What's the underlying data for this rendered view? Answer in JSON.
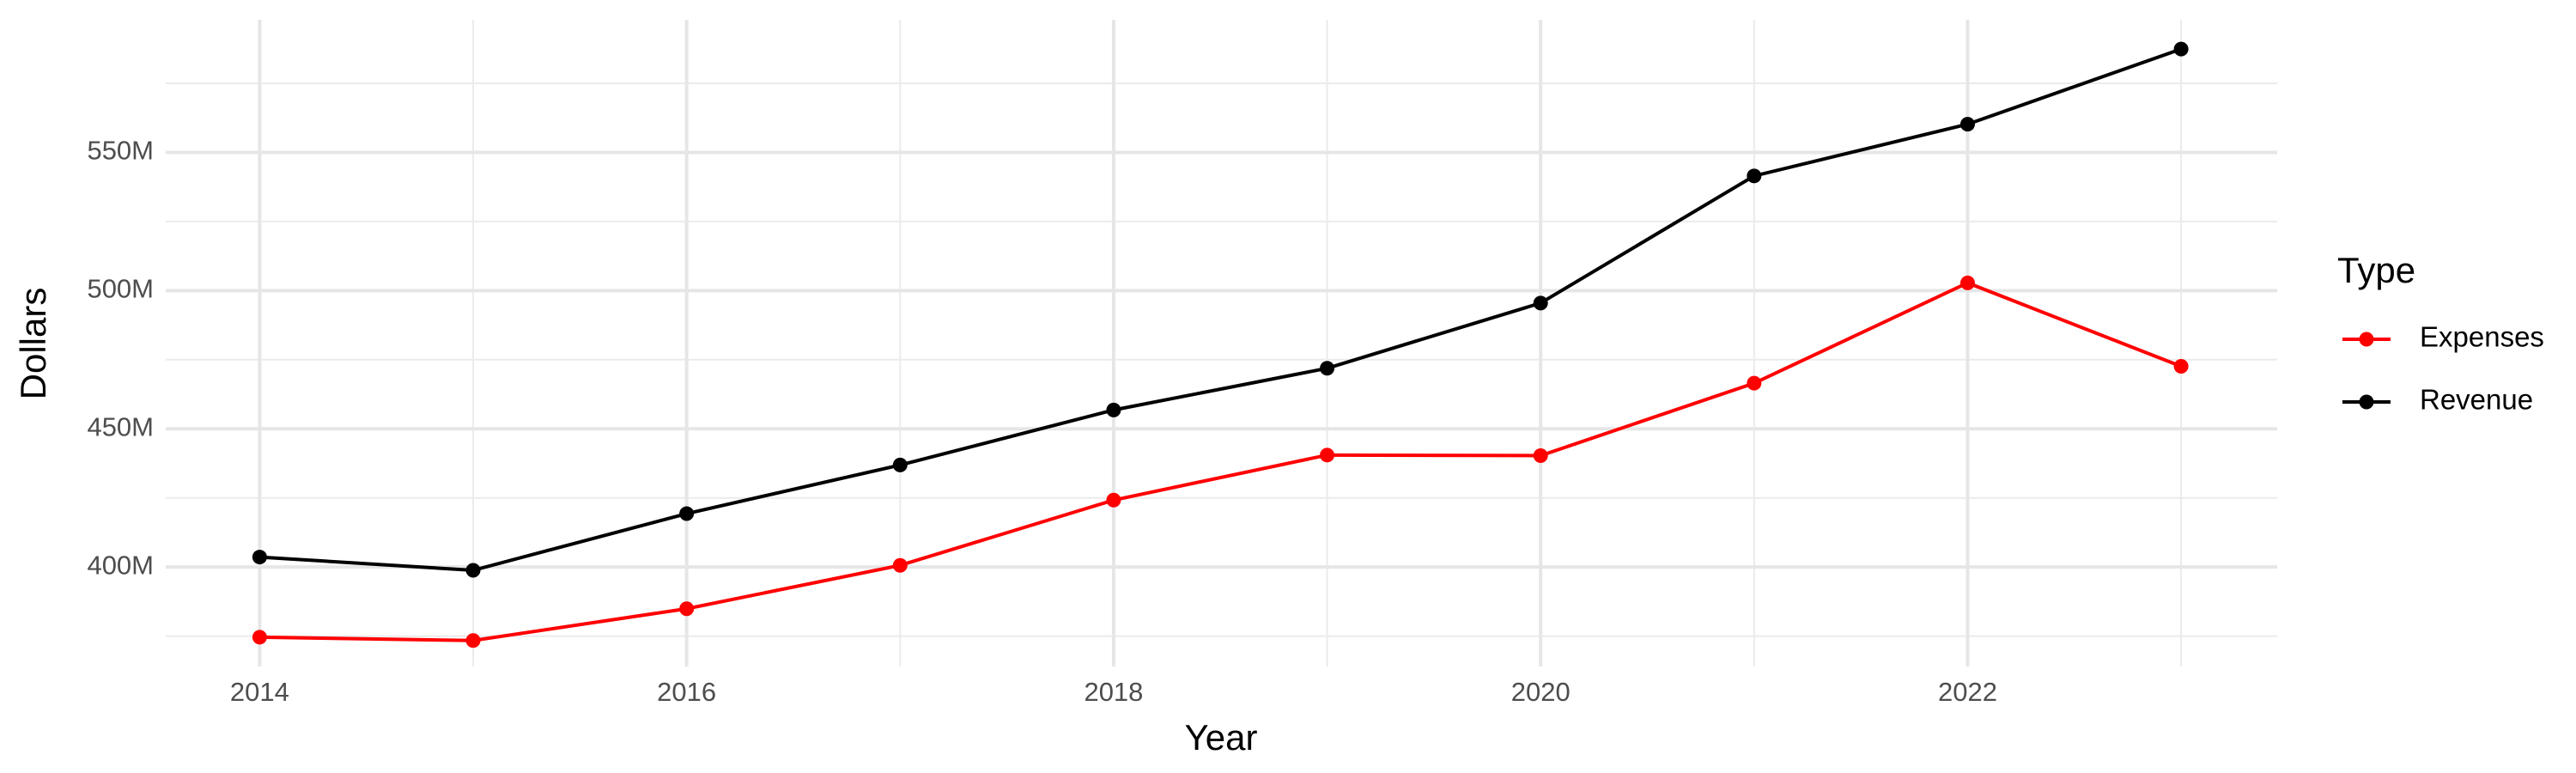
{
  "chart_data": {
    "type": "line",
    "x_label": "Year",
    "y_label": "Dollars",
    "legend_title": "Type",
    "legend": "right",
    "grid": true,
    "x": [
      2014,
      2015,
      2016,
      2017,
      2018,
      2019,
      2020,
      2021,
      2022,
      2023
    ],
    "series": [
      {
        "name": "Expenses",
        "color": "#ff0000",
        "values": [
          374600000,
          373400000,
          384900000,
          400600000,
          424200000,
          440500000,
          440300000,
          466500000,
          502800000,
          472600000
        ]
      },
      {
        "name": "Revenue",
        "color": "#000000",
        "values": [
          403600000,
          398800000,
          419300000,
          436900000,
          456800000,
          471900000,
          495500000,
          541500000,
          560200000,
          587400000
        ]
      }
    ],
    "xlim": [
      2013.56,
      2023.45
    ],
    "xticks": [
      2014,
      2016,
      2018,
      2020,
      2022
    ],
    "ylim": [
      364000000,
      598000000
    ],
    "yticks": [
      {
        "value": 400000000,
        "label": "400M"
      },
      {
        "value": 450000000,
        "label": "450M"
      },
      {
        "value": 500000000,
        "label": "500M"
      },
      {
        "value": 550000000,
        "label": "550M"
      }
    ]
  }
}
